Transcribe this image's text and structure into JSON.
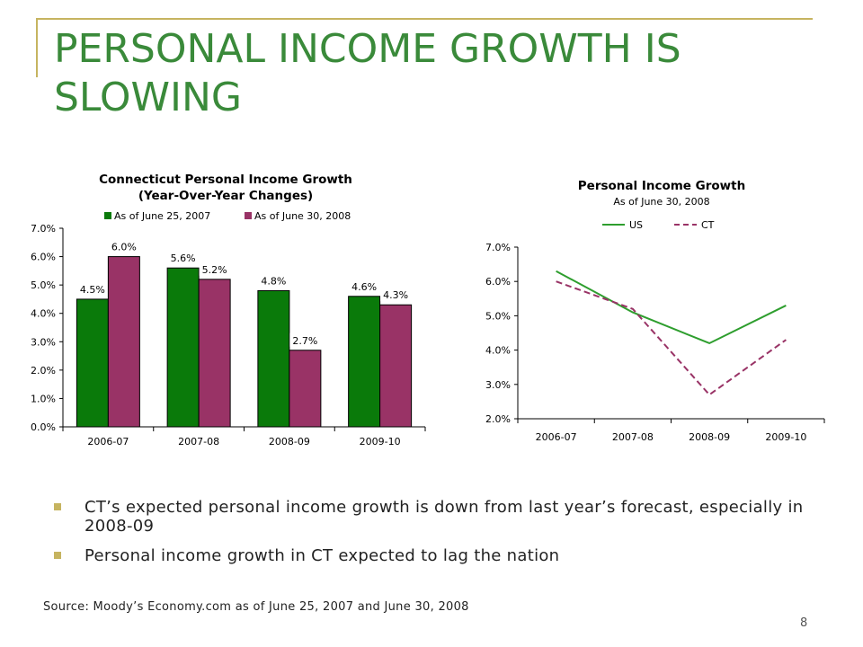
{
  "slide": {
    "title": "PERSONAL INCOME GROWTH IS SLOWING",
    "bullets": [
      "CT’s expected personal income growth is down from last year’s forecast, especially in 2008-09",
      "Personal income growth in CT expected to lag the nation"
    ],
    "source": "Source: Moody’s Economy.com as of June 25, 2007 and June 30, 2008",
    "page_number": "8"
  },
  "colors": {
    "title": "#3a8a3a",
    "accent": "#c6b460",
    "green_bar": "#0a7a0a",
    "maroon_bar": "#993366",
    "us_line": "#2e9e2e",
    "ct_line": "#993366"
  },
  "chart_data": [
    {
      "type": "bar",
      "title": "Connecticut Personal Income Growth",
      "subtitle": "(Year-Over-Year Changes)",
      "categories": [
        "2006-07",
        "2007-08",
        "2008-09",
        "2009-10"
      ],
      "series": [
        {
          "name": "As of June 25, 2007",
          "values": [
            4.5,
            5.6,
            4.8,
            4.6
          ],
          "labels": [
            "4.5%",
            "5.6%",
            "4.8%",
            "4.6%"
          ],
          "color": "#0a7a0a"
        },
        {
          "name": "As of June 30, 2008",
          "values": [
            6.0,
            5.2,
            2.7,
            4.3
          ],
          "labels": [
            "6.0%",
            "5.2%",
            "2.7%",
            "4.3%"
          ],
          "color": "#993366"
        }
      ],
      "ylim": [
        0,
        7
      ],
      "yticks": [
        "0.0%",
        "1.0%",
        "2.0%",
        "3.0%",
        "4.0%",
        "5.0%",
        "6.0%",
        "7.0%"
      ],
      "legend": "top",
      "grid": false
    },
    {
      "type": "line",
      "title": "Personal Income Growth",
      "subtitle": "As of June 30, 2008",
      "categories": [
        "2006-07",
        "2007-08",
        "2008-09",
        "2009-10"
      ],
      "series": [
        {
          "name": "US",
          "values": [
            6.3,
            5.1,
            4.2,
            5.3
          ],
          "color": "#2e9e2e",
          "style": "solid"
        },
        {
          "name": "CT",
          "values": [
            6.0,
            5.2,
            2.7,
            4.3
          ],
          "color": "#993366",
          "style": "dashed"
        }
      ],
      "ylim": [
        2,
        7
      ],
      "yticks": [
        "2.0%",
        "3.0%",
        "4.0%",
        "5.0%",
        "6.0%",
        "7.0%"
      ],
      "legend": "top",
      "grid": false
    }
  ]
}
